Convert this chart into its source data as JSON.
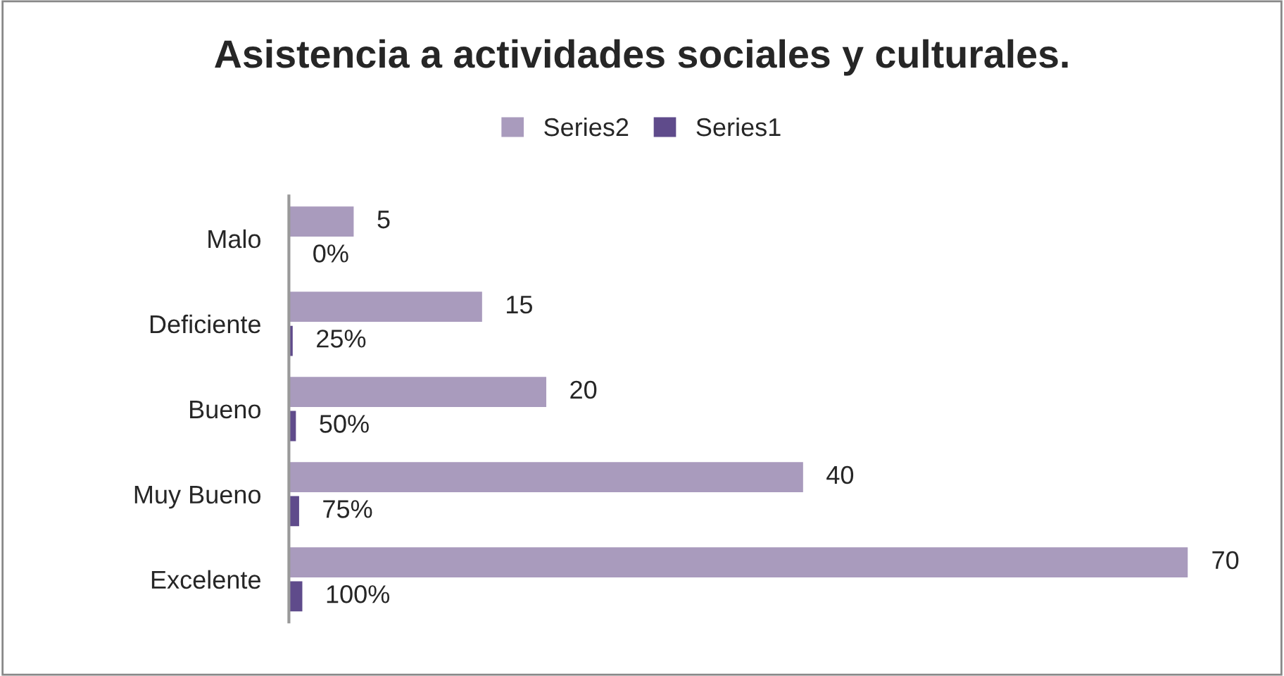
{
  "chart_data": {
    "type": "bar",
    "orientation": "horizontal",
    "title": "Asistencia a actividades sociales y culturales.",
    "categories": [
      "Malo",
      "Deficiente",
      "Bueno",
      "Muy Bueno",
      "Excelente"
    ],
    "series": [
      {
        "name": "Series2",
        "color": "#a99bbd",
        "values": [
          5,
          15,
          20,
          40,
          70
        ],
        "value_labels": [
          "5",
          "15",
          "20",
          "40",
          "70"
        ]
      },
      {
        "name": "Series1",
        "color": "#5f4b8b",
        "values": [
          0,
          0.25,
          0.5,
          0.75,
          1
        ],
        "value_labels": [
          "0%",
          "25%",
          "50%",
          "75%",
          "100%"
        ]
      }
    ],
    "legend": "top",
    "grid": false
  }
}
